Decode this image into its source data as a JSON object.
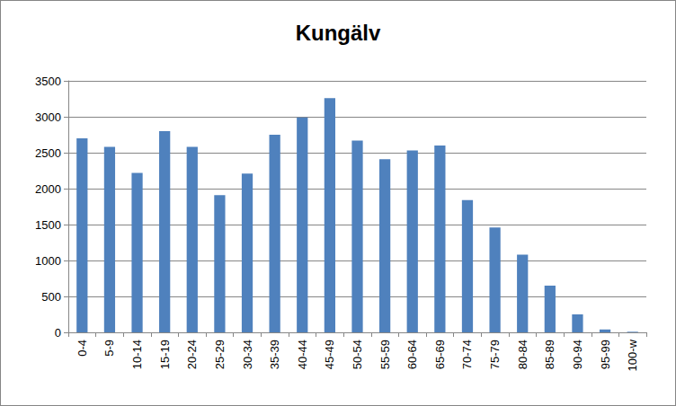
{
  "chart_data": {
    "type": "bar",
    "title": "Kungälv",
    "categories": [
      "0-4",
      "5-9",
      "10-14",
      "15-19",
      "20-24",
      "25-29",
      "30-34",
      "35-39",
      "40-44",
      "45-49",
      "50-54",
      "55-59",
      "60-64",
      "65-69",
      "70-74",
      "75-79",
      "80-84",
      "85-89",
      "90-94",
      "95-99",
      "100-w"
    ],
    "values": [
      2700,
      2580,
      2220,
      2800,
      2580,
      1910,
      2210,
      2750,
      2990,
      3260,
      2670,
      2410,
      2530,
      2600,
      1840,
      1460,
      1080,
      650,
      250,
      40,
      8
    ],
    "color": "#4f81bd",
    "ylim": [
      0,
      3500
    ],
    "yticks": [
      0,
      500,
      1000,
      1500,
      2000,
      2500,
      3000,
      3500
    ],
    "grid": true
  }
}
